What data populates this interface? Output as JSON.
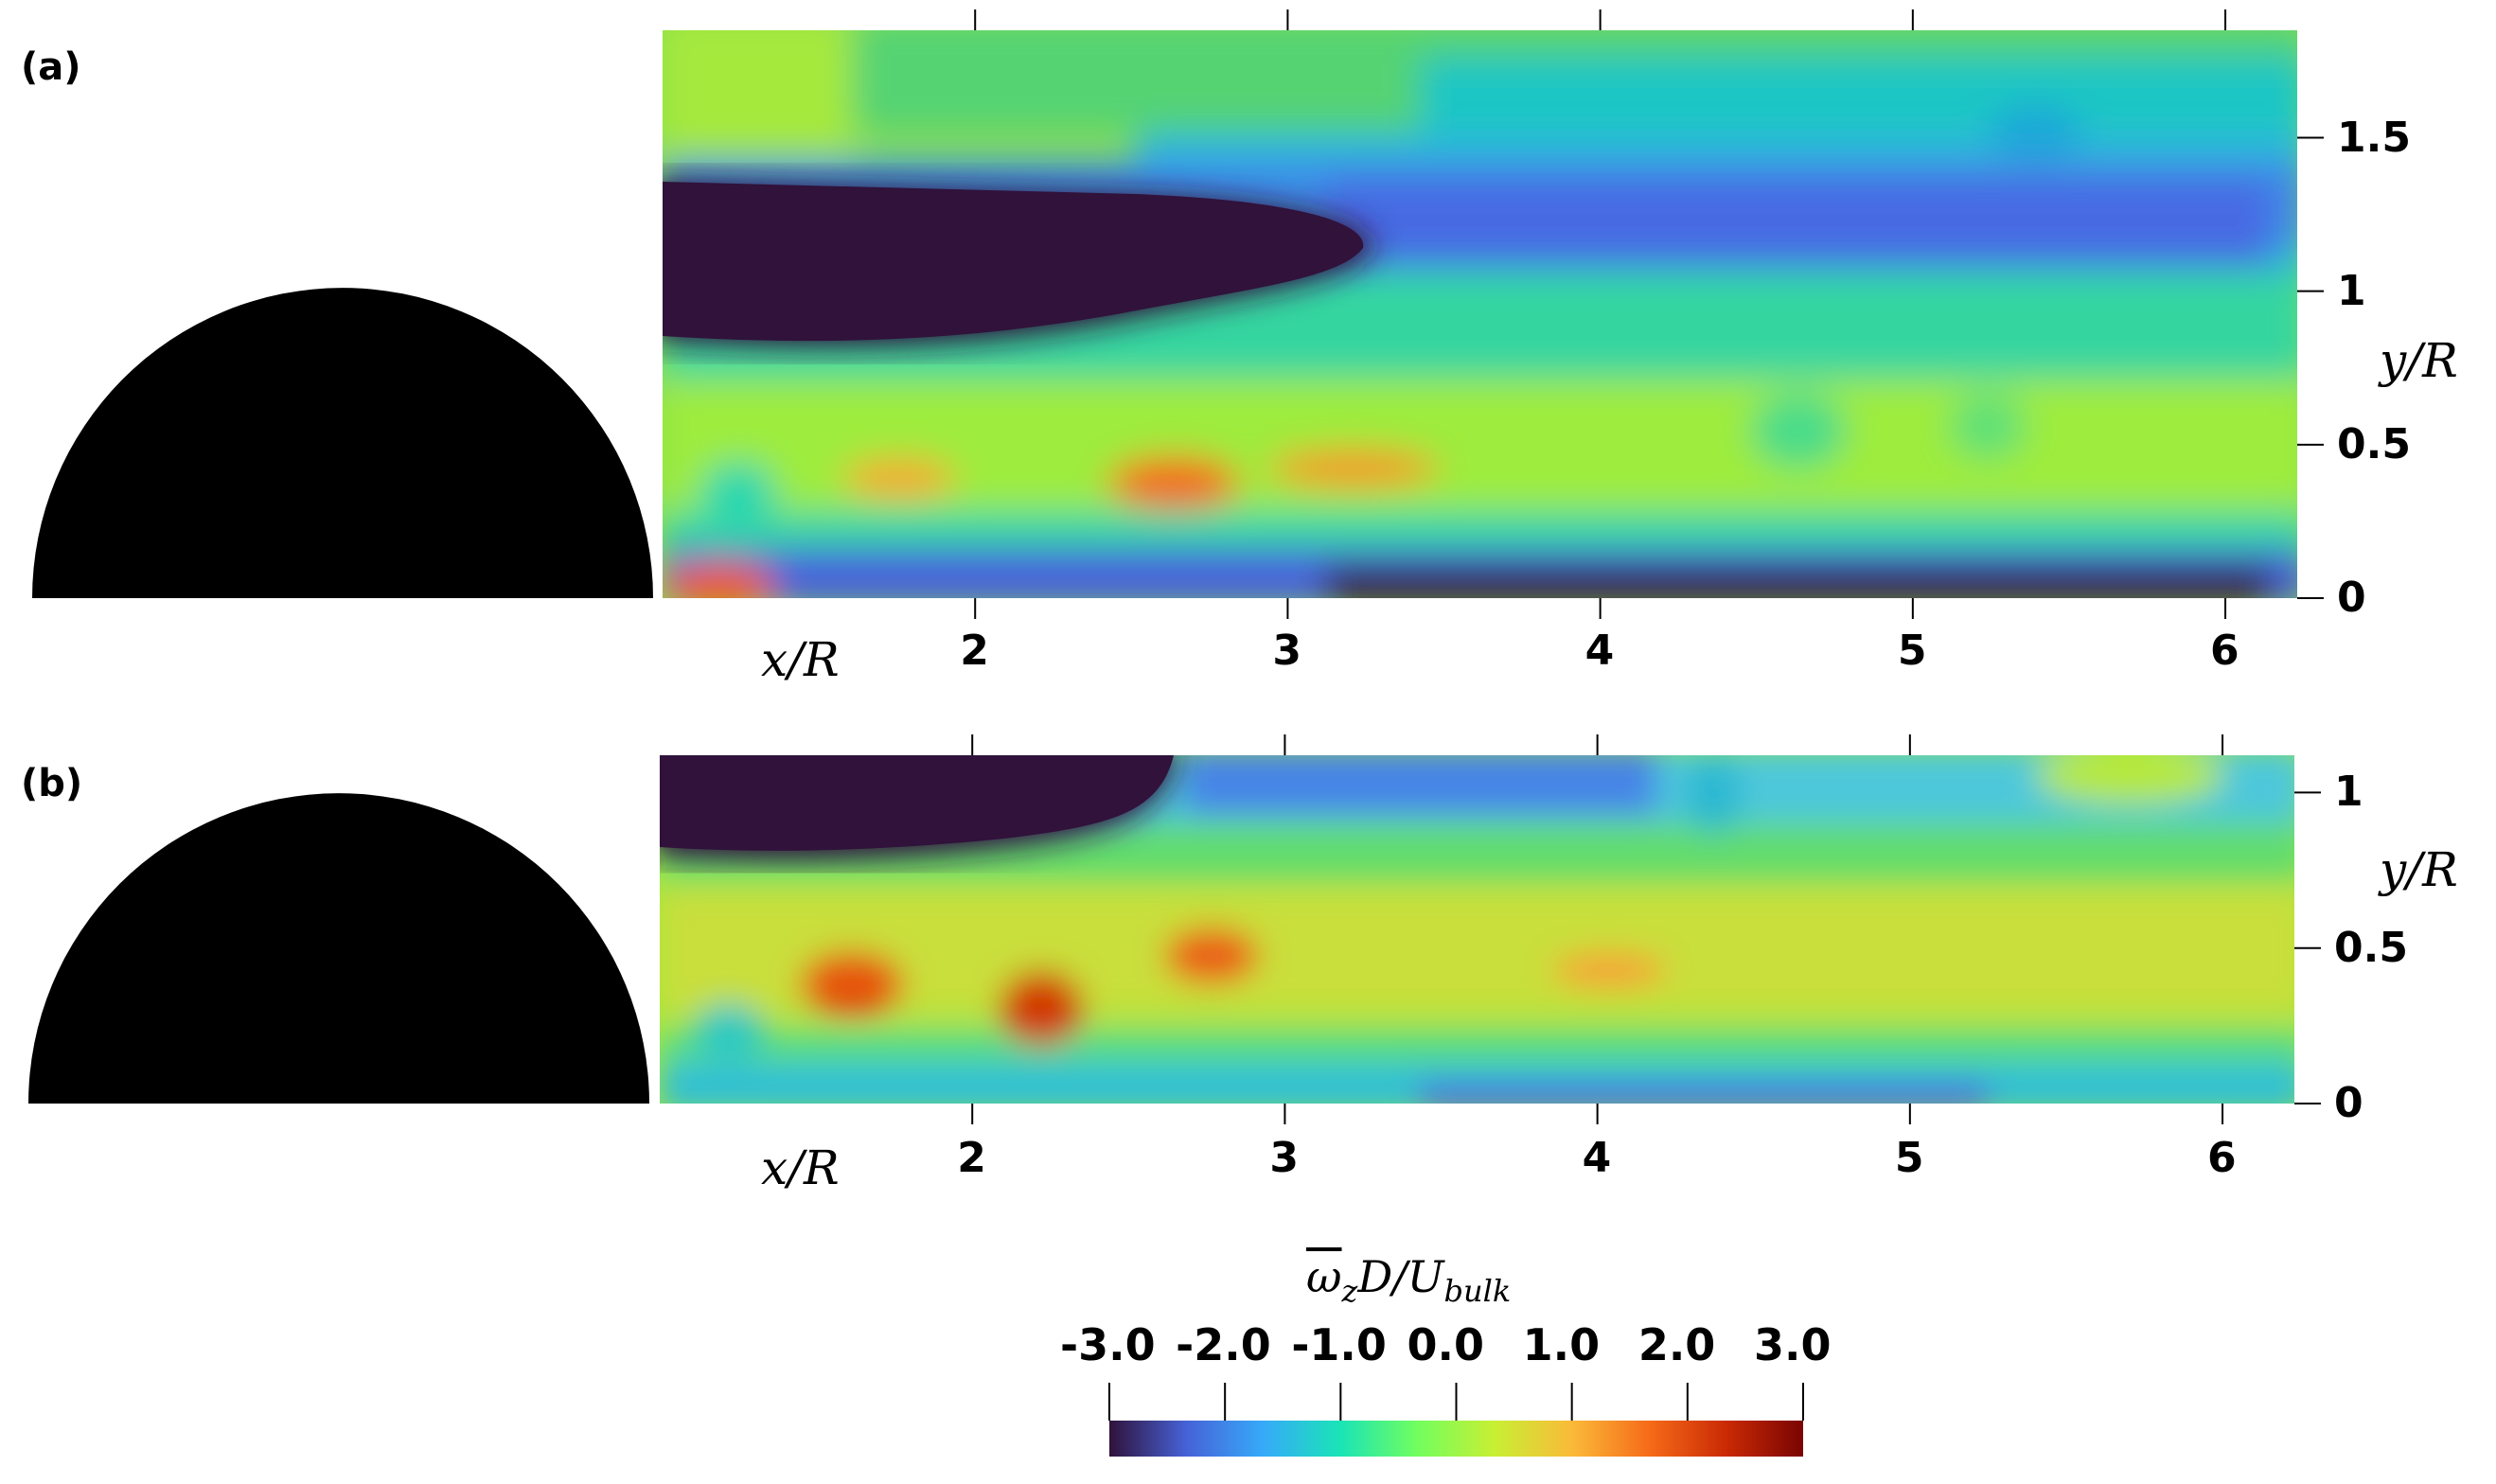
{
  "chart_data": [
    {
      "type": "heatmap",
      "panel_label": "(a)",
      "xlabel": "x/R",
      "ylabel": "y/R",
      "x_ticks": [
        2,
        3,
        4,
        5,
        6
      ],
      "x_tick_labels": [
        "2",
        "3",
        "4",
        "5",
        "6"
      ],
      "y_ticks": [
        0,
        0.5,
        1,
        1.5
      ],
      "y_tick_labels": [
        "0",
        "0.5",
        "1",
        "1.5"
      ],
      "xlim": [
        1.0,
        6.23
      ],
      "ylim": [
        0,
        1.85
      ],
      "colormap": "turbo",
      "value_range": [
        -3.0,
        3.0
      ],
      "features": [
        {
          "description": "strong negative vorticity shear layer",
          "x": [
            1.0,
            3.3
          ],
          "y": [
            0.8,
            1.38
          ],
          "value": -3.0
        },
        {
          "description": "negative vorticity wall layer",
          "x": [
            2.5,
            6.23
          ],
          "y": [
            0.0,
            0.08
          ],
          "value": -3.0
        },
        {
          "description": "positive vorticity blobs",
          "x": [
            1.7,
            3.6
          ],
          "y": [
            0.3,
            0.45
          ],
          "value": 2.0
        }
      ]
    },
    {
      "type": "heatmap",
      "panel_label": "(b)",
      "xlabel": "x/R",
      "ylabel": "y/R",
      "x_ticks": [
        2,
        3,
        4,
        5,
        6
      ],
      "x_tick_labels": [
        "2",
        "3",
        "4",
        "5",
        "6"
      ],
      "y_ticks": [
        0,
        0.5,
        1
      ],
      "y_tick_labels": [
        "0",
        "0.5",
        "1"
      ],
      "xlim": [
        1.0,
        6.23
      ],
      "ylim": [
        0,
        1.12
      ],
      "colormap": "turbo",
      "value_range": [
        -3.0,
        3.0
      ],
      "features": [
        {
          "description": "strong negative vorticity shear layer",
          "x": [
            1.0,
            2.7
          ],
          "y": [
            0.75,
            1.12
          ],
          "value": -3.0
        },
        {
          "description": "positive vorticity blobs",
          "x": [
            1.4,
            2.9
          ],
          "y": [
            0.25,
            0.5
          ],
          "value": 2.5
        }
      ]
    }
  ],
  "colorbar": {
    "title": "ω̄zD/Ubulk",
    "title_parts": {
      "omega": "ω",
      "sub_z": "z",
      "mid": "D/U",
      "sub_bulk": "bulk"
    },
    "ticks": [
      -3.0,
      -2.0,
      -1.0,
      0.0,
      1.0,
      2.0,
      3.0
    ],
    "tick_labels": [
      "-3.0",
      "-2.0",
      "-1.0",
      "0.0",
      "1.0",
      "2.0",
      "3.0"
    ],
    "colors": [
      "#30123b",
      "#4662d7",
      "#36aaf9",
      "#1ae4b6",
      "#72fe5e",
      "#c8ef34",
      "#faba39",
      "#f66b19",
      "#ca2a04",
      "#7a0403"
    ]
  }
}
